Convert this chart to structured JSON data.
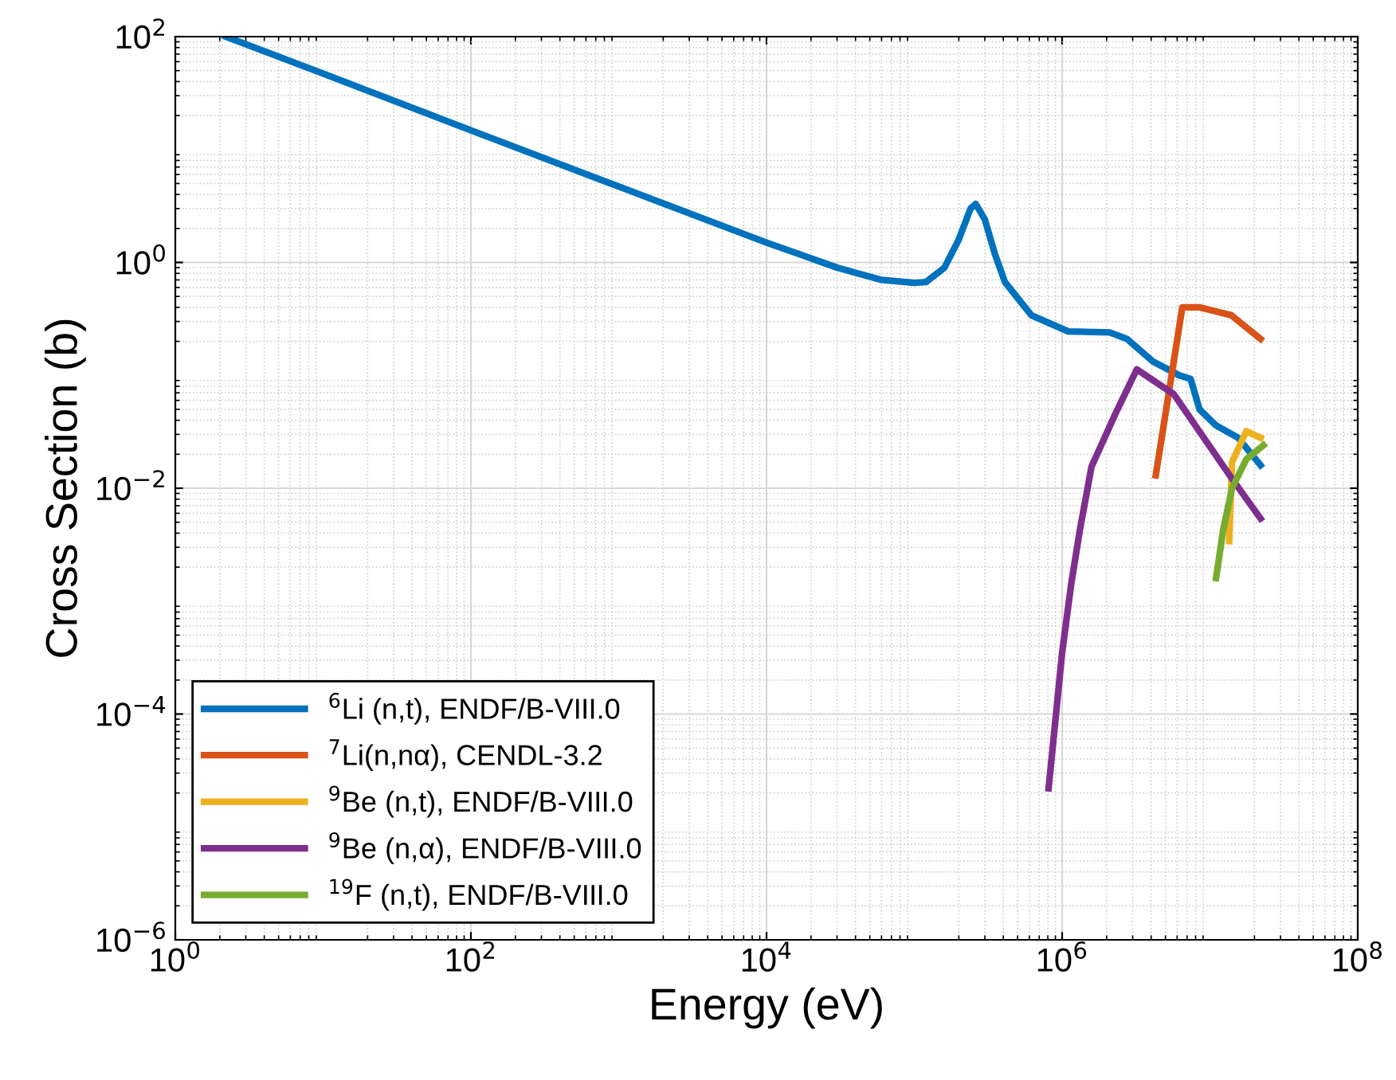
{
  "chart_data": {
    "type": "line",
    "xlabel": "Energy (eV)",
    "ylabel": "Cross Section (b)",
    "log": "xy",
    "grid": true,
    "legend": "bottom left",
    "line_style": "solid",
    "marker": "none",
    "xlim": [
      1,
      100000000
    ],
    "ylim": [
      1e-06,
      100
    ],
    "xticks": [
      {
        "value": 1,
        "label": "10$^{0}$"
      },
      {
        "value": 100,
        "label": "10$^{2}$"
      },
      {
        "value": 10000,
        "label": "10$^{4}$"
      },
      {
        "value": 1000000,
        "label": "10$^{6}$"
      },
      {
        "value": 100000000,
        "label": "10$^{8}$"
      }
    ],
    "yticks": [
      {
        "value": 1e-06,
        "label": "10$^{−6}$"
      },
      {
        "value": 0.0001,
        "label": "10$^{−4}$"
      },
      {
        "value": 0.01,
        "label": "10$^{−2}$"
      },
      {
        "value": 1,
        "label": "10$^{0}$"
      },
      {
        "value": 100,
        "label": "10$^{2}$"
      }
    ],
    "series": [
      {
        "name": "$^{6}$Li (n,t), ENDF/B-VIII.0",
        "color": "#0072bd",
        "x": [
          2.2,
          10,
          100,
          1000,
          10000,
          30000,
          60000,
          100000,
          120000,
          160000,
          200000,
          240000,
          260000,
          300000,
          350000,
          410000,
          620000,
          1100000,
          2100000,
          2750000,
          4100000,
          5200000,
          6200000,
          7400000,
          8500000,
          11000000,
          15500000,
          22000000
        ],
        "values": [
          100,
          47,
          14.8,
          4.7,
          1.5,
          0.9,
          0.7,
          0.66,
          0.67,
          0.9,
          1.6,
          3.0,
          3.3,
          2.4,
          1.2,
          0.67,
          0.34,
          0.245,
          0.24,
          0.21,
          0.133,
          0.113,
          0.1,
          0.093,
          0.05,
          0.036,
          0.028,
          0.016
        ]
      },
      {
        "name": "$^{7}$Li(n,nα), CENDL-3.2",
        "color": "#d95319",
        "x": [
          4300000,
          6500000,
          8500000,
          14000000,
          22000000
        ],
        "values": [
          0.013,
          0.4,
          0.4,
          0.34,
          0.21
        ]
      },
      {
        "name": "$^{9}$Be (n,t), ENDF/B-VIII.0",
        "color": "#edb120",
        "x": [
          13500000,
          14100000,
          17600000,
          22000000
        ],
        "values": [
          0.0034,
          0.017,
          0.032,
          0.028
        ]
      },
      {
        "name": "$^{9}$Be (n,α), ENDF/B-VIII.0",
        "color": "#7e2f8e",
        "x": [
          810000,
          1000000,
          1150000,
          1320000,
          1580000,
          2300000,
          3200000,
          5700000,
          14000000,
          22000000
        ],
        "values": [
          2.2e-05,
          0.00035,
          0.0014,
          0.0043,
          0.0155,
          0.046,
          0.113,
          0.068,
          0.0123,
          0.0054
        ]
      },
      {
        "name": "$^{19}$F (n,t), ENDF/B-VIII.0",
        "color": "#77ac30",
        "x": [
          11000000,
          12300000,
          14100000,
          17600000,
          23000000
        ],
        "values": [
          0.0016,
          0.0043,
          0.01,
          0.018,
          0.024
        ]
      }
    ]
  }
}
